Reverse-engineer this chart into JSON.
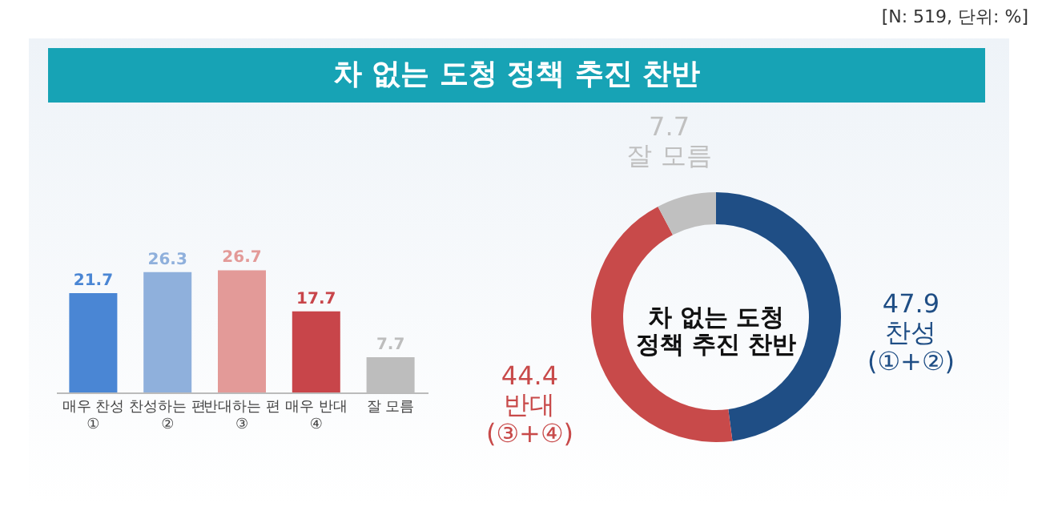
{
  "chart_data": [
    {
      "type": "bar",
      "title": "차 없는 도청 정책 추진 찬반",
      "annotations": [
        "[N: 519, 단위: %]"
      ],
      "categories": [
        "매우 찬성\n①",
        "찬성하는 편\n②",
        "반대하는 편\n③",
        "매우 반대\n④",
        "잘 모름"
      ],
      "values": [
        21.7,
        26.3,
        26.7,
        17.7,
        7.7
      ],
      "colors": [
        "#4a86d4",
        "#8fb0dc",
        "#e39a98",
        "#c8454a",
        "#bdbdbd"
      ],
      "data_labels": true,
      "tick_labels": "x"
    },
    {
      "type": "donut",
      "title": "차 없는 도청\n정책 추진 찬반",
      "categories": [
        "찬성\n(①+②)",
        "반대\n(③+④)",
        "잘 모름"
      ],
      "values": [
        47.9,
        44.4,
        7.7
      ],
      "colors": [
        "#1f4e85",
        "#c84a4a",
        "#c0c0c0"
      ],
      "data_labels": true
    }
  ]
}
